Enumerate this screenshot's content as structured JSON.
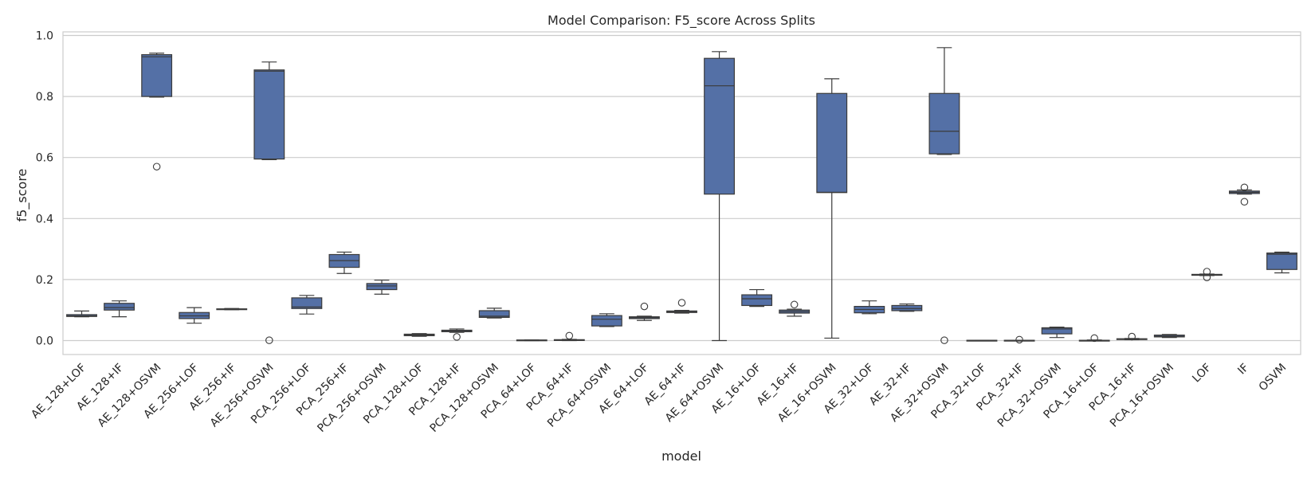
{
  "chart_data": {
    "type": "box",
    "title": "Model Comparison: F5_score Across Splits",
    "xlabel": "model",
    "ylabel": "f5_score",
    "ylim": [
      -0.045,
      1.01
    ],
    "yticks": [
      0.0,
      0.2,
      0.4,
      0.6,
      0.8,
      1.0
    ],
    "ytick_labels": [
      "0.0",
      "0.2",
      "0.4",
      "0.6",
      "0.8",
      "1.0"
    ],
    "grid": "horizontal",
    "box_color": "#5470a6",
    "edge_color": "#3b3b3b",
    "categories": [
      "AE_128+LOF",
      "AE_128+IF",
      "AE_128+OSVM",
      "AE_256+LOF",
      "AE_256+IF",
      "AE_256+OSVM",
      "PCA_256+LOF",
      "PCA_256+IF",
      "PCA_256+OSVM",
      "PCA_128+LOF",
      "PCA_128+IF",
      "PCA_128+OSVM",
      "PCA_64+LOF",
      "PCA_64+IF",
      "PCA_64+OSVM",
      "AE_64+LOF",
      "AE_64+IF",
      "AE_64+OSVM",
      "AE_16+LOF",
      "AE_16+IF",
      "AE_16+OSVM",
      "AE_32+LOF",
      "AE_32+IF",
      "AE_32+OSVM",
      "PCA_32+LOF",
      "PCA_32+IF",
      "PCA_32+OSVM",
      "PCA_16+LOF",
      "PCA_16+IF",
      "PCA_16+OSVM",
      "LOF",
      "IF",
      "OSVM"
    ],
    "boxes": [
      {
        "whislo": 0.078,
        "q1": 0.079,
        "med": 0.081,
        "q3": 0.085,
        "whishi": 0.097,
        "fliers": []
      },
      {
        "whislo": 0.078,
        "q1": 0.1,
        "med": 0.108,
        "q3": 0.122,
        "whishi": 0.13,
        "fliers": []
      },
      {
        "whislo": 0.798,
        "q1": 0.8,
        "med": 0.93,
        "q3": 0.937,
        "whishi": 0.942,
        "fliers": [
          0.57
        ]
      },
      {
        "whislo": 0.057,
        "q1": 0.072,
        "med": 0.081,
        "q3": 0.092,
        "whishi": 0.108,
        "fliers": []
      },
      {
        "whislo": 0.101,
        "q1": 0.102,
        "med": 0.103,
        "q3": 0.104,
        "whishi": 0.105,
        "fliers": []
      },
      {
        "whislo": 0.593,
        "q1": 0.595,
        "med": 0.883,
        "q3": 0.887,
        "whishi": 0.913,
        "fliers": [
          0.001
        ]
      },
      {
        "whislo": 0.087,
        "q1": 0.105,
        "med": 0.11,
        "q3": 0.14,
        "whishi": 0.148,
        "fliers": []
      },
      {
        "whislo": 0.22,
        "q1": 0.24,
        "med": 0.262,
        "q3": 0.282,
        "whishi": 0.29,
        "fliers": []
      },
      {
        "whislo": 0.152,
        "q1": 0.167,
        "med": 0.179,
        "q3": 0.187,
        "whishi": 0.198,
        "fliers": []
      },
      {
        "whislo": 0.014,
        "q1": 0.016,
        "med": 0.018,
        "q3": 0.021,
        "whishi": 0.023,
        "fliers": []
      },
      {
        "whislo": 0.027,
        "q1": 0.029,
        "med": 0.032,
        "q3": 0.034,
        "whishi": 0.038,
        "fliers": [
          0.012
        ]
      },
      {
        "whislo": 0.074,
        "q1": 0.076,
        "med": 0.08,
        "q3": 0.098,
        "whishi": 0.106,
        "fliers": []
      },
      {
        "whislo": 0.0,
        "q1": 0.001,
        "med": 0.001,
        "q3": 0.002,
        "whishi": 0.002,
        "fliers": []
      },
      {
        "whislo": 0.0,
        "q1": 0.001,
        "med": 0.001,
        "q3": 0.003,
        "whishi": 0.004,
        "fliers": [
          0.016
        ]
      },
      {
        "whislo": 0.046,
        "q1": 0.048,
        "med": 0.07,
        "q3": 0.082,
        "whishi": 0.088,
        "fliers": []
      },
      {
        "whislo": 0.066,
        "q1": 0.072,
        "med": 0.075,
        "q3": 0.078,
        "whishi": 0.08,
        "fliers": [
          0.112
        ]
      },
      {
        "whislo": 0.09,
        "q1": 0.092,
        "med": 0.094,
        "q3": 0.097,
        "whishi": 0.099,
        "fliers": [
          0.124
        ]
      },
      {
        "whislo": 0.0,
        "q1": 0.48,
        "med": 0.835,
        "q3": 0.925,
        "whishi": 0.947,
        "fliers": []
      },
      {
        "whislo": 0.112,
        "q1": 0.115,
        "med": 0.137,
        "q3": 0.15,
        "whishi": 0.167,
        "fliers": []
      },
      {
        "whislo": 0.08,
        "q1": 0.09,
        "med": 0.095,
        "q3": 0.1,
        "whishi": 0.103,
        "fliers": [
          0.118
        ]
      },
      {
        "whislo": 0.008,
        "q1": 0.485,
        "med": 0.486,
        "q3": 0.81,
        "whishi": 0.858,
        "fliers": []
      },
      {
        "whislo": 0.088,
        "q1": 0.091,
        "med": 0.102,
        "q3": 0.112,
        "whishi": 0.13,
        "fliers": []
      },
      {
        "whislo": 0.096,
        "q1": 0.098,
        "med": 0.105,
        "q3": 0.115,
        "whishi": 0.12,
        "fliers": []
      },
      {
        "whislo": 0.61,
        "q1": 0.612,
        "med": 0.686,
        "q3": 0.81,
        "whishi": 0.96,
        "fliers": [
          0.001
        ]
      },
      {
        "whislo": 0.0,
        "q1": 0.0,
        "med": 0.0,
        "q3": 0.001,
        "whishi": 0.001,
        "fliers": []
      },
      {
        "whislo": 0.0,
        "q1": 0.0,
        "med": 0.0,
        "q3": 0.001,
        "whishi": 0.001,
        "fliers": [
          0.003
        ]
      },
      {
        "whislo": 0.01,
        "q1": 0.022,
        "med": 0.038,
        "q3": 0.042,
        "whishi": 0.044,
        "fliers": []
      },
      {
        "whislo": 0.0,
        "q1": 0.0,
        "med": 0.001,
        "q3": 0.001,
        "whishi": 0.002,
        "fliers": [
          0.008
        ]
      },
      {
        "whislo": 0.003,
        "q1": 0.004,
        "med": 0.005,
        "q3": 0.006,
        "whishi": 0.007,
        "fliers": [
          0.013
        ]
      },
      {
        "whislo": 0.01,
        "q1": 0.012,
        "med": 0.014,
        "q3": 0.018,
        "whishi": 0.02,
        "fliers": []
      },
      {
        "whislo": 0.213,
        "q1": 0.214,
        "med": 0.216,
        "q3": 0.217,
        "whishi": 0.218,
        "fliers": [
          0.226,
          0.207
        ]
      },
      {
        "whislo": 0.48,
        "q1": 0.482,
        "med": 0.486,
        "q3": 0.49,
        "whishi": 0.494,
        "fliers": [
          0.502,
          0.455
        ]
      },
      {
        "whislo": 0.222,
        "q1": 0.233,
        "med": 0.283,
        "q3": 0.287,
        "whishi": 0.29,
        "fliers": []
      }
    ]
  }
}
